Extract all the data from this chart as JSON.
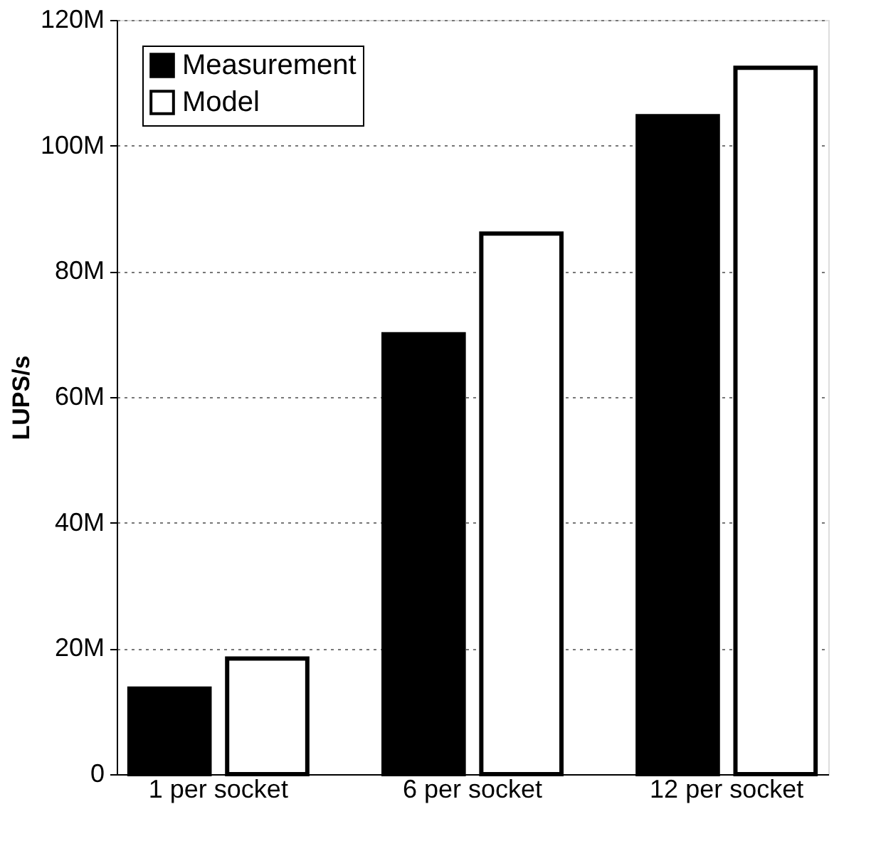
{
  "chart_data": {
    "type": "bar",
    "ylabel": "LUPS/s",
    "categories": [
      "1 per socket",
      "6 per socket",
      "12 per socket"
    ],
    "series": [
      {
        "name": "Measurement",
        "color": "#000000",
        "values": [
          13600000,
          70000000,
          104700000
        ]
      },
      {
        "name": "Model",
        "color": "#ffffff",
        "values": [
          18400000,
          86000000,
          112400000
        ]
      }
    ],
    "ylim": [
      0,
      120000000
    ],
    "yticks": [
      0,
      {
        "value": 20000000,
        "label": "20M"
      },
      {
        "value": 40000000,
        "label": "40M"
      },
      {
        "value": 60000000,
        "label": "60M"
      },
      {
        "value": 80000000,
        "label": "80M"
      },
      {
        "value": 100000000,
        "label": "100M"
      },
      {
        "value": 120000000,
        "label": "120M"
      }
    ],
    "grid": "y",
    "legend": "top left"
  }
}
